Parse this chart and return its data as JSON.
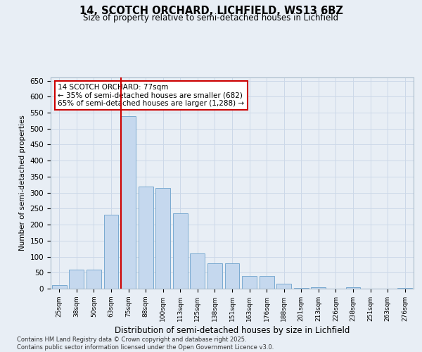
{
  "title_line1": "14, SCOTCH ORCHARD, LICHFIELD, WS13 6BZ",
  "title_line2": "Size of property relative to semi-detached houses in Lichfield",
  "xlabel": "Distribution of semi-detached houses by size in Lichfield",
  "ylabel": "Number of semi-detached properties",
  "property_label": "14 SCOTCH ORCHARD: 77sqm",
  "smaller_pct": 35,
  "smaller_n": 682,
  "larger_pct": 65,
  "larger_n": 1288,
  "categories": [
    "25sqm",
    "38sqm",
    "50sqm",
    "63sqm",
    "75sqm",
    "88sqm",
    "100sqm",
    "113sqm",
    "125sqm",
    "138sqm",
    "151sqm",
    "163sqm",
    "176sqm",
    "188sqm",
    "201sqm",
    "213sqm",
    "226sqm",
    "238sqm",
    "251sqm",
    "263sqm",
    "276sqm"
  ],
  "values": [
    10,
    60,
    60,
    230,
    540,
    320,
    315,
    235,
    110,
    80,
    80,
    40,
    40,
    15,
    2,
    5,
    0,
    5,
    0,
    0,
    2
  ],
  "bar_color": "#c5d8ee",
  "bar_edge_color": "#7aaad0",
  "highlight_idx": 4,
  "vline_color": "#cc0000",
  "annotation_box_edge": "#cc0000",
  "annotation_box_face": "#ffffff",
  "grid_color": "#ccd8e8",
  "background_color": "#e8eef5",
  "footer_line1": "Contains HM Land Registry data © Crown copyright and database right 2025.",
  "footer_line2": "Contains public sector information licensed under the Open Government Licence v3.0.",
  "ylim": [
    0,
    660
  ],
  "yticks": [
    0,
    50,
    100,
    150,
    200,
    250,
    300,
    350,
    400,
    450,
    500,
    550,
    600,
    650
  ]
}
